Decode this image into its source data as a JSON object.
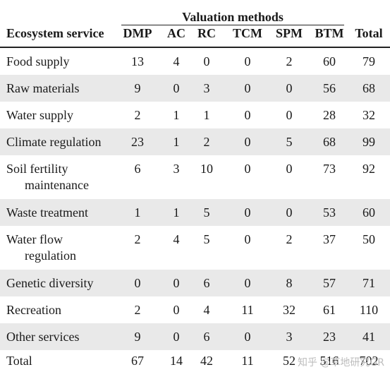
{
  "header": {
    "group_title": "Valuation methods",
    "row_label": "Ecosystem service",
    "columns": [
      "DMP",
      "AC",
      "RC",
      "TCM",
      "SPM",
      "BTM",
      "Total"
    ]
  },
  "rows": [
    {
      "label": [
        "Food supply"
      ],
      "values": [
        "13",
        "4",
        "0",
        "0",
        "2",
        "60",
        "79"
      ]
    },
    {
      "label": [
        "Raw materials"
      ],
      "values": [
        "9",
        "0",
        "3",
        "0",
        "0",
        "56",
        "68"
      ]
    },
    {
      "label": [
        "Water supply"
      ],
      "values": [
        "2",
        "1",
        "1",
        "0",
        "0",
        "28",
        "32"
      ]
    },
    {
      "label": [
        "Climate regulation"
      ],
      "values": [
        "23",
        "1",
        "2",
        "0",
        "5",
        "68",
        "99"
      ]
    },
    {
      "label": [
        "Soil fertility",
        "maintenance"
      ],
      "values": [
        "6",
        "3",
        "10",
        "0",
        "0",
        "73",
        "92"
      ]
    },
    {
      "label": [
        "Waste treatment"
      ],
      "values": [
        "1",
        "1",
        "5",
        "0",
        "0",
        "53",
        "60"
      ]
    },
    {
      "label": [
        "Water flow",
        "regulation"
      ],
      "values": [
        "2",
        "4",
        "5",
        "0",
        "2",
        "37",
        "50"
      ]
    },
    {
      "label": [
        "Genetic diversity"
      ],
      "values": [
        "0",
        "0",
        "6",
        "0",
        "8",
        "57",
        "71"
      ]
    },
    {
      "label": [
        "Recreation"
      ],
      "values": [
        "2",
        "0",
        "4",
        "11",
        "32",
        "61",
        "110"
      ]
    },
    {
      "label": [
        "Other services"
      ],
      "values": [
        "9",
        "0",
        "6",
        "0",
        "3",
        "23",
        "41"
      ]
    },
    {
      "label": [
        "Total"
      ],
      "values": [
        "67",
        "14",
        "42",
        "11",
        "52",
        "516",
        "702"
      ]
    }
  ],
  "watermark": "知乎 @草地研究GR"
}
